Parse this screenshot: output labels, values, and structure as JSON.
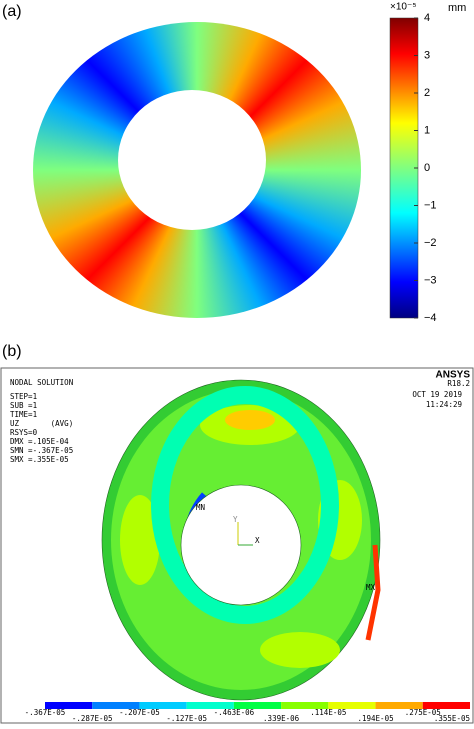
{
  "panel_a": {
    "label": "(a)",
    "colorbar": {
      "exponent": "×10⁻⁵",
      "unit": "mm",
      "ticks": [
        "4",
        "3",
        "2",
        "1",
        "0",
        "−1",
        "−2",
        "−3",
        "−4"
      ]
    }
  },
  "panel_b": {
    "label": "(b)",
    "brand": "ANSYS",
    "version": "R18.2",
    "date": "OCT 19 2019",
    "time": "11:24:29",
    "header": [
      "NODAL SOLUTION",
      "STEP=1",
      "SUB =1",
      "TIME=1",
      "UZ       (AVG)",
      "RSYS=0",
      "DMX =.105E-04",
      "SMN =-.367E-05",
      "SMX =.355E-05"
    ],
    "markers": [
      "MN",
      "MX"
    ],
    "axes": [
      "Y",
      "X"
    ],
    "legend": [
      "-.367E-05",
      "-.287E-05",
      "-.207E-05",
      "-.127E-05",
      "-.463E-06",
      ".339E-06",
      ".114E-05",
      ".194E-05",
      ".275E-05",
      ".355E-05"
    ]
  }
}
